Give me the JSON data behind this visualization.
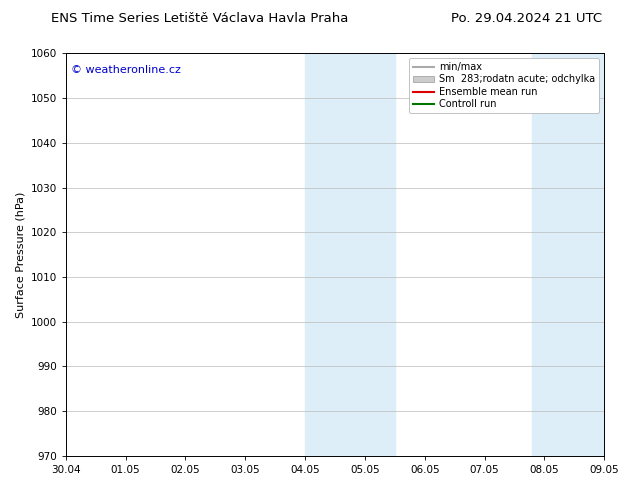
{
  "title_left": "ENS Time Series Letiště Václava Havla Praha",
  "title_right": "Po. 29.04.2024 21 UTC",
  "ylabel": "Surface Pressure (hPa)",
  "watermark": "© weatheronline.cz",
  "watermark_color": "#0000cc",
  "ylim": [
    970,
    1060
  ],
  "yticks": [
    970,
    980,
    990,
    1000,
    1010,
    1020,
    1030,
    1040,
    1050,
    1060
  ],
  "xtick_labels": [
    "30.04",
    "01.05",
    "02.05",
    "03.05",
    "04.05",
    "05.05",
    "06.05",
    "07.05",
    "08.05",
    "09.05"
  ],
  "xtick_positions": [
    0,
    1,
    2,
    3,
    4,
    5,
    6,
    7,
    8,
    9
  ],
  "xlim": [
    0,
    9
  ],
  "shaded_regions": [
    {
      "xmin": 4.0,
      "xmax": 5.5
    },
    {
      "xmin": 7.8,
      "xmax": 9.0
    }
  ],
  "shaded_color": "#ddeef8",
  "background_color": "#ffffff",
  "legend_entries": [
    {
      "label": "min/max",
      "color": "#aaaaaa",
      "type": "line",
      "linewidth": 1.5
    },
    {
      "label": "Sm  283;rodatn acute; odchylka",
      "color": "#cccccc",
      "type": "patch"
    },
    {
      "label": "Ensemble mean run",
      "color": "#dd0000",
      "type": "line",
      "linewidth": 1.5
    },
    {
      "label": "Controll run",
      "color": "#007700",
      "type": "line",
      "linewidth": 1.5
    }
  ],
  "grid_color": "#bbbbbb",
  "title_fontsize": 9.5,
  "tick_fontsize": 7.5,
  "ylabel_fontsize": 8,
  "legend_fontsize": 7,
  "watermark_fontsize": 8
}
